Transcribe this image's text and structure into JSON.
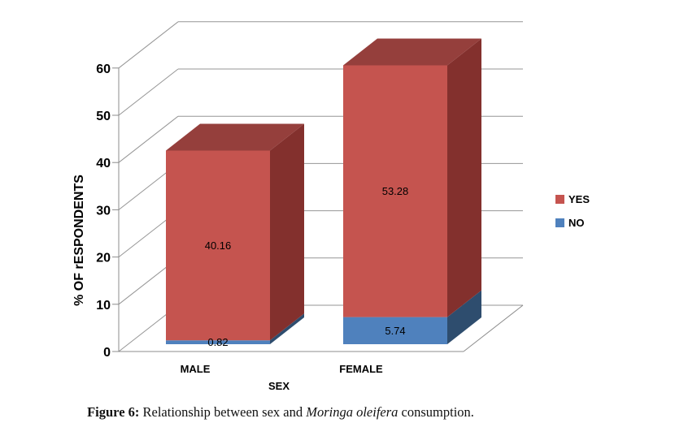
{
  "caption": {
    "label": "Figure 6:",
    "pre_italic": " Relationship between sex and ",
    "italic": "Moringa oleifera",
    "post_italic": " consumption."
  },
  "chart_data": {
    "type": "bar",
    "variant": "3d-stacked-column",
    "xlabel": "SEX",
    "ylabel": "% OF rESPONDENTS",
    "categories": [
      "MALE",
      "FEMALE"
    ],
    "series": [
      {
        "name": "YES",
        "values": [
          40.16,
          53.28
        ],
        "color": "#C5544F"
      },
      {
        "name": "NO",
        "values": [
          0.82,
          5.74
        ],
        "color": "#4F81BD"
      }
    ],
    "stack_bottom_to_top": [
      "NO",
      "YES"
    ],
    "totals": [
      40.98,
      59.02
    ],
    "ylim": [
      0,
      60
    ],
    "yticks": [
      0,
      10,
      20,
      30,
      40,
      50,
      60
    ],
    "data_labels": true,
    "grid": true,
    "legend_position": "right",
    "palette_3d": {
      "YES": {
        "front": "#C5544F",
        "side": "#83302D",
        "top": "#953F3C"
      },
      "NO": {
        "front": "#4F81BD",
        "side": "#2E4D6E",
        "top": "#3B6190"
      }
    },
    "axis_color": "#8C8C8C",
    "grid_color": "#969696",
    "text_color": "#000000"
  }
}
